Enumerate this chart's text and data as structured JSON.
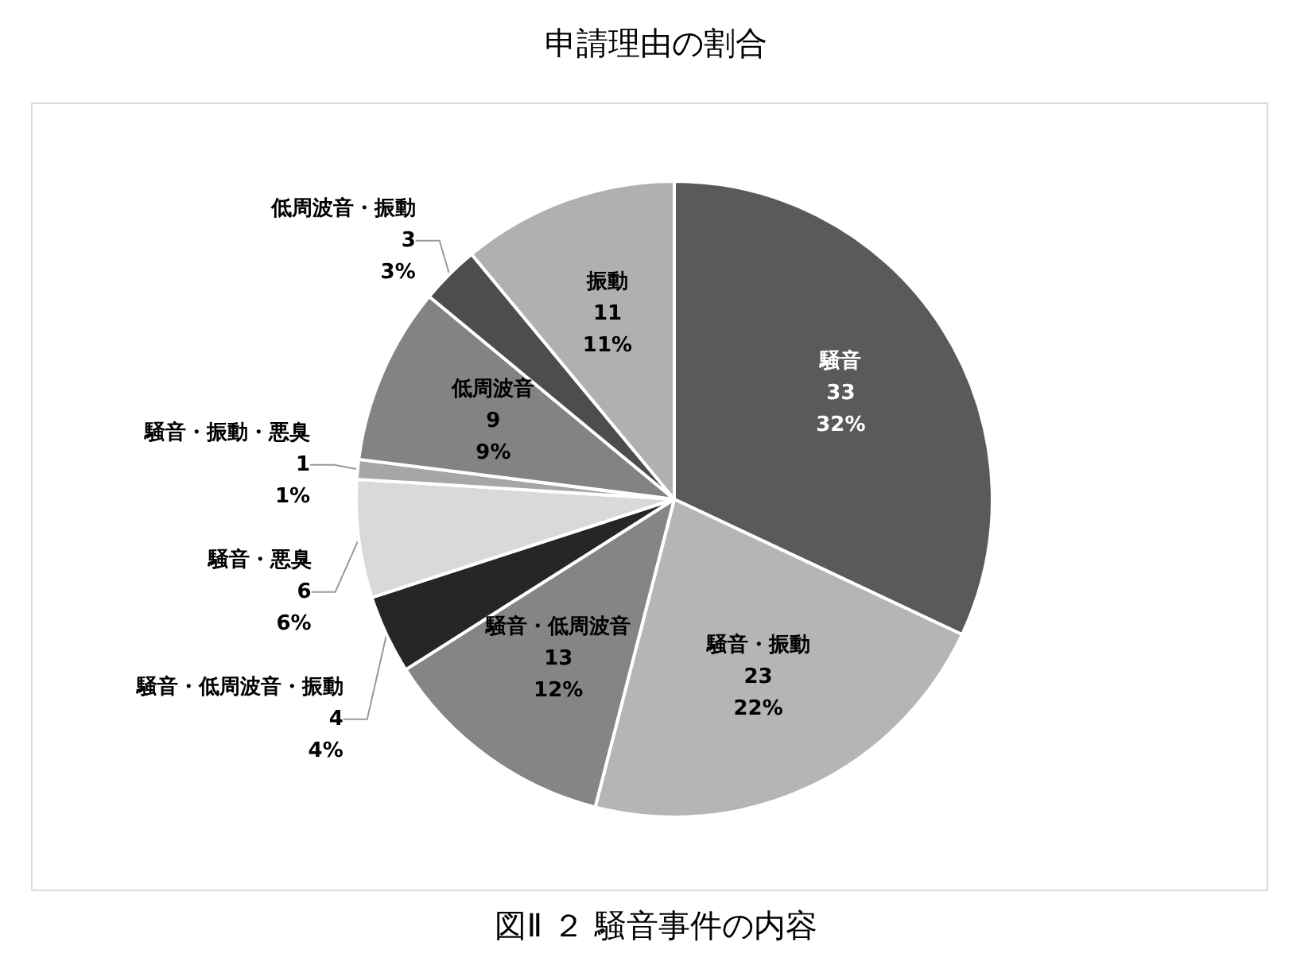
{
  "chart_data": {
    "type": "pie",
    "title": "申請理由の割合",
    "categories": [
      "騒音",
      "騒音・振動",
      "騒音・低周波音",
      "騒音・低周波音・振動",
      "騒音・悪臭",
      "騒音・振動・悪臭",
      "低周波音",
      "低周波音・振動",
      "振動"
    ],
    "values": [
      32,
      22,
      12,
      4,
      6,
      1,
      9,
      3,
      11
    ],
    "value_labels": [
      "33\n32%",
      "23\n22%",
      "13\n12%",
      "4\n4%",
      "6\n6%",
      "1\n1%",
      "9\n9%",
      "3\n3%",
      "11\n11%"
    ],
    "colors": [
      "#5a5a5a",
      "#b5b5b5",
      "#858585",
      "#262626",
      "#d9d9d9",
      "#a6a6a6",
      "#838383",
      "#4d4d4d",
      "#b0b0b0"
    ],
    "legend": false,
    "annotations": [
      "図Ⅱ ２ 騒音事件の内容"
    ]
  }
}
